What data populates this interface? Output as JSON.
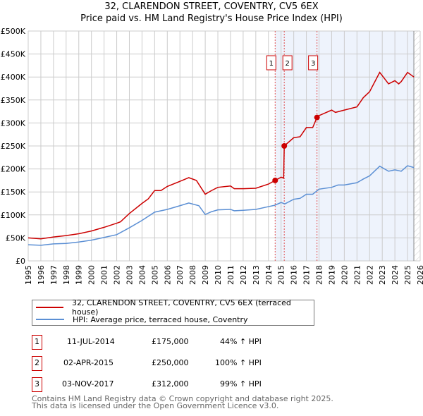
{
  "chart_data": {
    "type": "line",
    "title": "32, CLARENDON STREET, COVENTRY, CV5 6EX",
    "subtitle": "Price paid vs. HM Land Registry's House Price Index (HPI)",
    "xlim": [
      1995,
      2026
    ],
    "ylim": [
      0,
      500000
    ],
    "x_ticks": [
      1995,
      1996,
      1997,
      1998,
      1999,
      2000,
      2001,
      2002,
      2003,
      2004,
      2005,
      2006,
      2007,
      2008,
      2009,
      2010,
      2011,
      2012,
      2013,
      2014,
      2015,
      2016,
      2017,
      2018,
      2019,
      2020,
      2021,
      2022,
      2023,
      2024,
      2025,
      2026
    ],
    "y_ticks": [
      {
        "v": 0,
        "label": "£0"
      },
      {
        "v": 50000,
        "label": "£50K"
      },
      {
        "v": 100000,
        "label": "£100K"
      },
      {
        "v": 150000,
        "label": "£150K"
      },
      {
        "v": 200000,
        "label": "£200K"
      },
      {
        "v": 250000,
        "label": "£250K"
      },
      {
        "v": 300000,
        "label": "£300K"
      },
      {
        "v": 350000,
        "label": "£350K"
      },
      {
        "v": 400000,
        "label": "£400K"
      },
      {
        "v": 450000,
        "label": "£450K"
      },
      {
        "v": 500000,
        "label": "£500K"
      }
    ],
    "grid": true,
    "series": [
      {
        "name": "32, CLARENDON STREET, COVENTRY, CV5 6EX (terraced house)",
        "color": "#cc0000",
        "points": [
          [
            1995,
            50
          ],
          [
            1996,
            48
          ],
          [
            1997,
            52
          ],
          [
            1998,
            55
          ],
          [
            1999,
            59
          ],
          [
            2000,
            65
          ],
          [
            2001,
            73
          ],
          [
            2002,
            82
          ],
          [
            2002.3,
            85
          ],
          [
            2003,
            103
          ],
          [
            2004,
            125
          ],
          [
            2004.5,
            135
          ],
          [
            2005,
            153
          ],
          [
            2005.5,
            153
          ],
          [
            2006,
            162
          ],
          [
            2007,
            173
          ],
          [
            2007.7,
            181
          ],
          [
            2008.3,
            175
          ],
          [
            2009,
            145
          ],
          [
            2009.5,
            153
          ],
          [
            2010,
            160
          ],
          [
            2011,
            163
          ],
          [
            2011.3,
            157
          ],
          [
            2012,
            157
          ],
          [
            2013,
            158
          ],
          [
            2014,
            167
          ],
          [
            2014.53,
            175
          ],
          [
            2015,
            182
          ],
          [
            2015.2,
            180
          ],
          [
            2015.25,
            250
          ],
          [
            2016,
            268
          ],
          [
            2016.5,
            270
          ],
          [
            2017,
            290
          ],
          [
            2017.5,
            290
          ],
          [
            2017.84,
            312
          ],
          [
            2018,
            316
          ],
          [
            2019,
            328
          ],
          [
            2019.3,
            323
          ],
          [
            2020,
            328
          ],
          [
            2021,
            335
          ],
          [
            2021.5,
            355
          ],
          [
            2022,
            368
          ],
          [
            2022.8,
            410
          ],
          [
            2023.5,
            385
          ],
          [
            2024,
            392
          ],
          [
            2024.3,
            385
          ],
          [
            2024.5,
            390
          ],
          [
            2025,
            410
          ],
          [
            2025.5,
            400
          ]
        ]
      },
      {
        "name": "HPI: Average price, terraced house, Coventry",
        "color": "#5b8fd4",
        "points": [
          [
            1995,
            35
          ],
          [
            1996,
            34
          ],
          [
            1997,
            37
          ],
          [
            1998,
            38
          ],
          [
            1999,
            41
          ],
          [
            2000,
            45
          ],
          [
            2001,
            51
          ],
          [
            2002,
            57
          ],
          [
            2003,
            72
          ],
          [
            2004,
            88
          ],
          [
            2005,
            106
          ],
          [
            2006,
            112
          ],
          [
            2007,
            120
          ],
          [
            2007.7,
            126
          ],
          [
            2008.5,
            120
          ],
          [
            2009,
            101
          ],
          [
            2009.5,
            107
          ],
          [
            2010,
            111
          ],
          [
            2011,
            112
          ],
          [
            2011.3,
            109
          ],
          [
            2012,
            110
          ],
          [
            2013,
            112
          ],
          [
            2014,
            118
          ],
          [
            2014.5,
            121
          ],
          [
            2015,
            127
          ],
          [
            2015.3,
            124
          ],
          [
            2016,
            134
          ],
          [
            2016.5,
            136
          ],
          [
            2017,
            145
          ],
          [
            2017.5,
            145
          ],
          [
            2018,
            156
          ],
          [
            2019,
            160
          ],
          [
            2019.5,
            165
          ],
          [
            2020,
            165
          ],
          [
            2021,
            170
          ],
          [
            2021.5,
            178
          ],
          [
            2022,
            185
          ],
          [
            2022.8,
            206
          ],
          [
            2023.5,
            195
          ],
          [
            2024,
            198
          ],
          [
            2024.5,
            195
          ],
          [
            2025,
            207
          ],
          [
            2025.5,
            203
          ]
        ]
      }
    ],
    "point_units": "x in years, y in £ thousands",
    "sales": [
      {
        "label": "1",
        "x": 2014.53,
        "y": 175
      },
      {
        "label": "2",
        "x": 2015.25,
        "y": 250
      },
      {
        "label": "3",
        "x": 2017.84,
        "y": 312
      }
    ],
    "shaded_from": 2014.53,
    "shaded_to": 2025.5,
    "legend_position": "below"
  },
  "legend": [
    "32, CLARENDON STREET, COVENTRY, CV5 6EX (terraced house)",
    "HPI: Average price, terraced house, Coventry"
  ],
  "transactions": [
    {
      "n": "1",
      "date": "11-JUL-2014",
      "price": "£175,000",
      "hpi": "44% ↑ HPI"
    },
    {
      "n": "2",
      "date": "02-APR-2015",
      "price": "£250,000",
      "hpi": "100% ↑ HPI"
    },
    {
      "n": "3",
      "date": "03-NOV-2017",
      "price": "£312,000",
      "hpi": "99% ↑ HPI"
    }
  ],
  "footer": [
    "Contains HM Land Registry data © Crown copyright and database right 2025.",
    "This data is licensed under the Open Government Licence v3.0."
  ]
}
